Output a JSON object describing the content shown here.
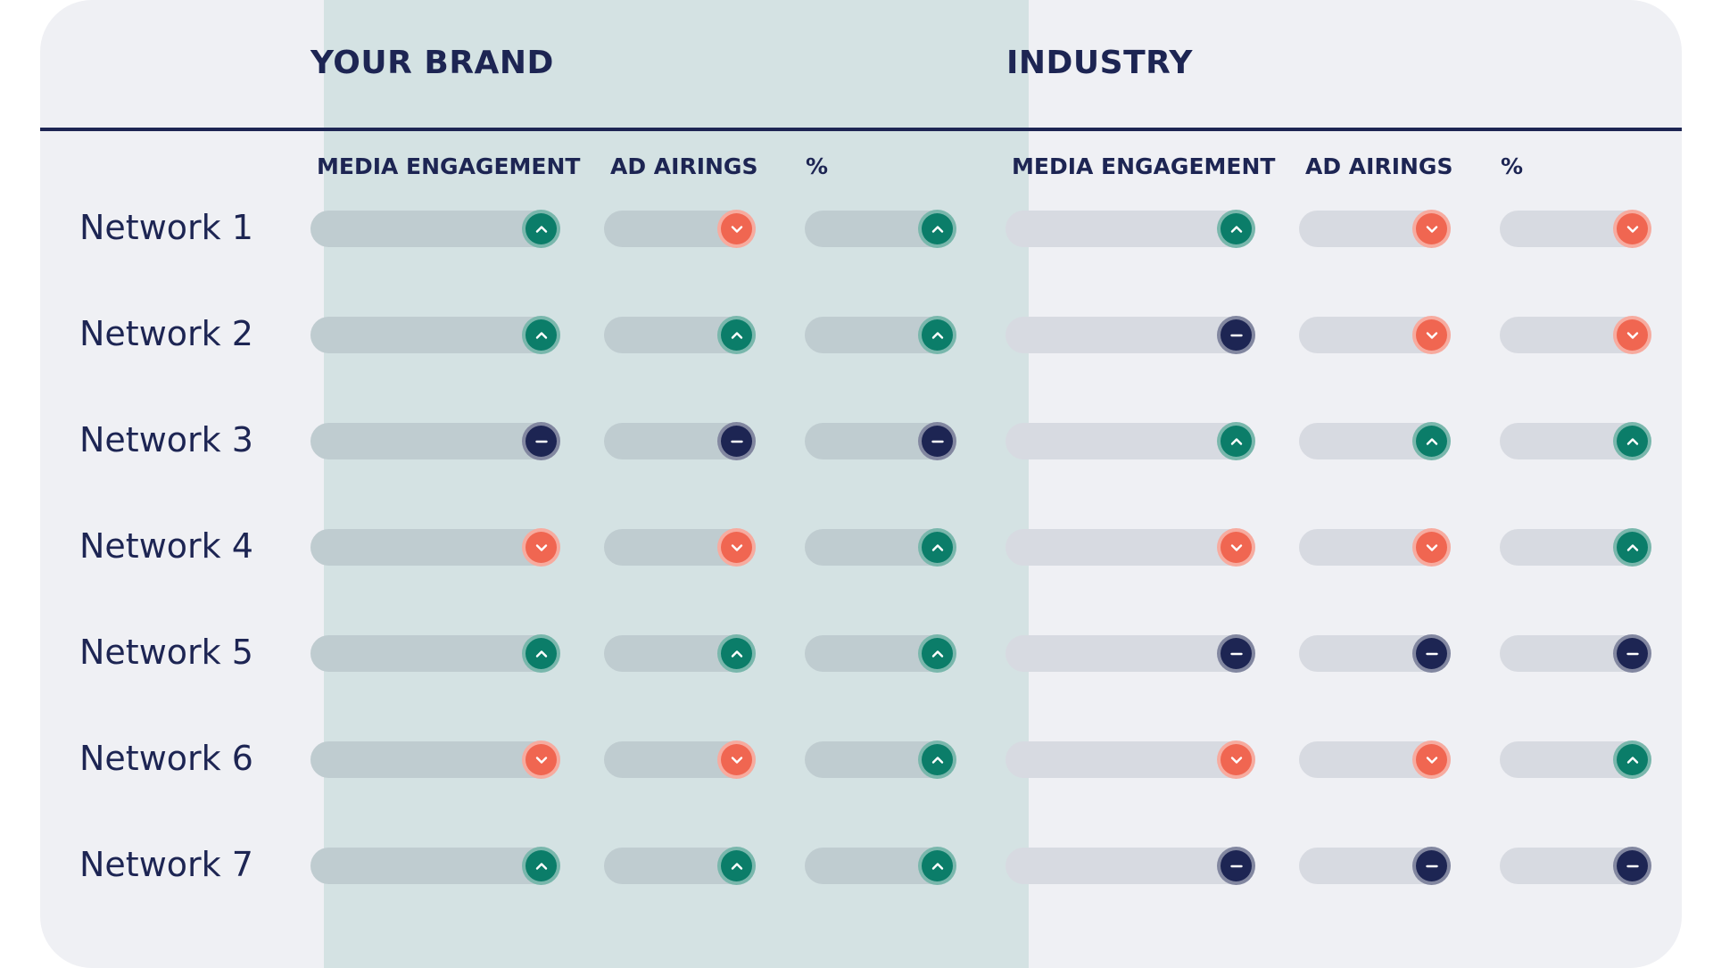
{
  "groups": {
    "brand": {
      "title": "YOUR BRAND"
    },
    "industry": {
      "title": "INDUSTRY"
    }
  },
  "columns": {
    "brand": [
      "MEDIA ENGAGEMENT",
      "AD AIRINGS",
      "%"
    ],
    "industry": [
      "MEDIA ENGAGEMENT",
      "AD AIRINGS",
      "%"
    ]
  },
  "rows": [
    {
      "label": "Network 1",
      "brand": [
        "up",
        "down",
        "up"
      ],
      "industry": [
        "up",
        "down",
        "down"
      ]
    },
    {
      "label": "Network 2",
      "brand": [
        "up",
        "up",
        "up"
      ],
      "industry": [
        "flat",
        "down",
        "down"
      ]
    },
    {
      "label": "Network 3",
      "brand": [
        "flat",
        "flat",
        "flat"
      ],
      "industry": [
        "up",
        "up",
        "up"
      ]
    },
    {
      "label": "Network 4",
      "brand": [
        "down",
        "down",
        "up"
      ],
      "industry": [
        "down",
        "down",
        "up"
      ]
    },
    {
      "label": "Network 5",
      "brand": [
        "up",
        "up",
        "up"
      ],
      "industry": [
        "flat",
        "flat",
        "flat"
      ]
    },
    {
      "label": "Network 6",
      "brand": [
        "down",
        "down",
        "up"
      ],
      "industry": [
        "down",
        "down",
        "up"
      ]
    },
    {
      "label": "Network 7",
      "brand": [
        "up",
        "up",
        "up"
      ],
      "industry": [
        "flat",
        "flat",
        "flat"
      ]
    }
  ],
  "icons": {
    "up": "chevron-up-icon",
    "down": "chevron-down-icon",
    "flat": "minus-icon"
  },
  "colors": {
    "up": "#0b7d69",
    "down": "#f06651",
    "flat": "#1d2553",
    "text": "#1d2553",
    "brand_panel": "#d4e2e3",
    "card": "#eff0f4"
  }
}
